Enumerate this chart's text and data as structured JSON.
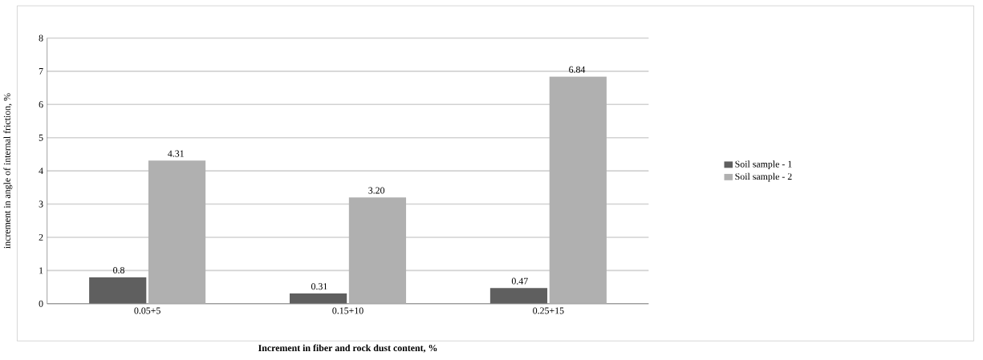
{
  "chart_data": {
    "type": "bar",
    "xlabel": "Increment in fiber and rock dust content, %",
    "ylabel": "increment in angle of internal friction, %",
    "categories": [
      "0.05+5",
      "0.15+10",
      "0.25+15"
    ],
    "series": [
      {
        "name": "Soil sample - 1",
        "color": "#5f5f5f",
        "values": [
          0.8,
          0.31,
          0.47
        ],
        "value_labels": [
          "0.8",
          "0.31",
          "0.47"
        ]
      },
      {
        "name": "Soil sample - 2",
        "color": "#b0b0b0",
        "values": [
          4.31,
          3.2,
          6.84
        ],
        "value_labels": [
          "4.31",
          "3.20",
          "6.84"
        ]
      }
    ],
    "ylim": [
      0,
      8
    ],
    "yticks": [
      0,
      1,
      2,
      3,
      4,
      5,
      6,
      7,
      8
    ],
    "grid": "y",
    "legend": "right"
  }
}
